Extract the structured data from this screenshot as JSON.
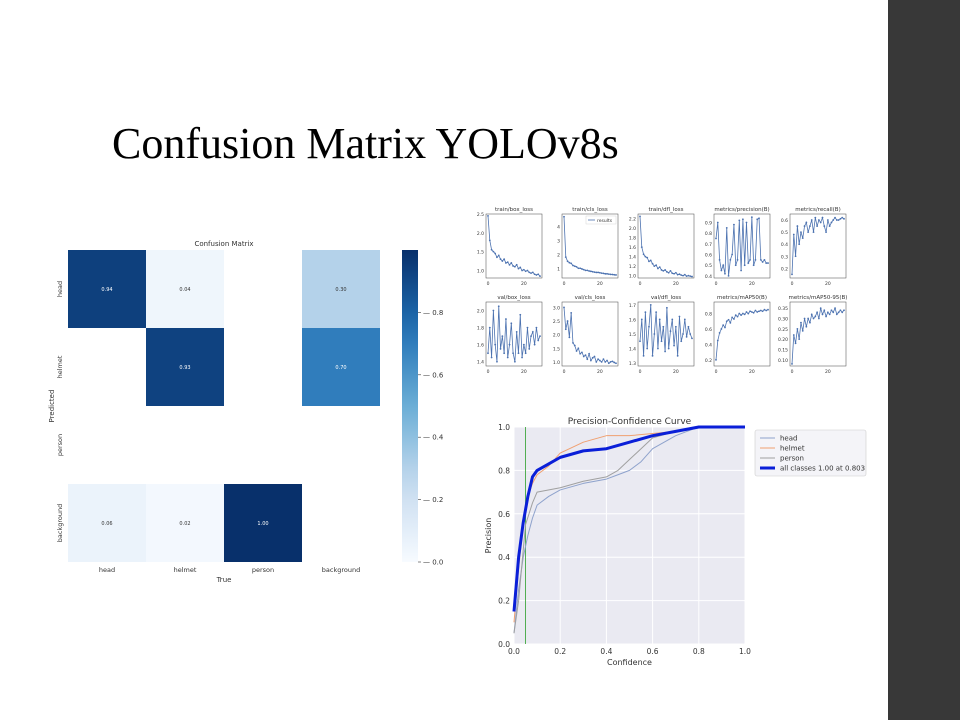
{
  "slide": {
    "title": "Confusion Matrix YOLOv8s",
    "sidebar_color": "#383838"
  },
  "chart_data": [
    {
      "type": "heatmap",
      "title": "Confusion Matrix",
      "xlabel": "True",
      "ylabel": "Predicted",
      "x_categories": [
        "head",
        "helmet",
        "person",
        "background"
      ],
      "y_categories": [
        "head",
        "helmet",
        "person",
        "background"
      ],
      "values": [
        [
          0.94,
          0.04,
          null,
          0.3
        ],
        [
          null,
          0.93,
          null,
          0.7
        ],
        [
          null,
          null,
          null,
          null
        ],
        [
          0.06,
          0.02,
          1.0,
          null
        ]
      ],
      "value_labels": [
        [
          "0.94",
          "0.04",
          "",
          "0.30"
        ],
        [
          "",
          "0.93",
          "",
          "0.70"
        ],
        [
          "",
          "",
          "",
          ""
        ],
        [
          "0.06",
          "0.02",
          "1.00",
          ""
        ]
      ],
      "colormap": "Blues",
      "colorbar_ticks": [
        "0.0",
        "0.2",
        "0.4",
        "0.6",
        "0.8"
      ],
      "colorbar_range": [
        0,
        1
      ]
    },
    {
      "type": "line",
      "layout": "2x5 small multiples",
      "legend": "results",
      "series_color": "#4c72b0",
      "x_ticks": [
        "0",
        "20"
      ],
      "panels": [
        {
          "title": "train/box_loss",
          "y_ticks": [
            "1.0",
            "1.5",
            "2.0",
            "2.5"
          ],
          "ylim": [
            0.8,
            2.5
          ],
          "values": [
            2.45,
            1.8,
            1.55,
            1.5,
            1.45,
            1.35,
            1.4,
            1.3,
            1.25,
            1.3,
            1.2,
            1.22,
            1.15,
            1.2,
            1.12,
            1.1,
            1.15,
            1.05,
            1.08,
            1.0,
            1.02,
            0.98,
            1.0,
            0.95,
            0.93,
            0.95,
            0.9,
            0.88,
            0.9,
            0.85
          ]
        },
        {
          "title": "train/cls_loss",
          "y_ticks": [
            "1",
            "2",
            "3",
            "4"
          ],
          "ylim": [
            0.3,
            4.9
          ],
          "values": [
            4.7,
            1.8,
            1.5,
            1.4,
            1.35,
            1.2,
            1.15,
            1.1,
            1.0,
            1.0,
            0.95,
            0.9,
            0.85,
            0.85,
            0.8,
            0.78,
            0.75,
            0.72,
            0.7,
            0.7,
            0.68,
            0.65,
            0.63,
            0.6,
            0.6,
            0.58,
            0.56,
            0.55,
            0.53,
            0.52
          ]
        },
        {
          "title": "train/dfl_loss",
          "y_ticks": [
            "1.0",
            "1.2",
            "1.4",
            "1.6",
            "1.8",
            "2.0",
            "2.2"
          ],
          "ylim": [
            0.95,
            2.3
          ],
          "values": [
            2.25,
            1.6,
            1.45,
            1.4,
            1.38,
            1.3,
            1.32,
            1.25,
            1.2,
            1.22,
            1.15,
            1.18,
            1.12,
            1.1,
            1.12,
            1.08,
            1.06,
            1.1,
            1.05,
            1.04,
            1.06,
            1.02,
            1.03,
            1.01,
            1.0,
            1.02,
            0.99,
            1.0,
            0.99,
            0.98
          ]
        },
        {
          "title": "metrics/precision(B)",
          "y_ticks": [
            "0.4",
            "0.5",
            "0.6",
            "0.7",
            "0.8",
            "0.9"
          ],
          "ylim": [
            0.38,
            0.98
          ],
          "values": [
            0.75,
            0.9,
            0.55,
            0.45,
            0.5,
            0.42,
            0.85,
            0.4,
            0.55,
            0.6,
            0.88,
            0.5,
            0.55,
            0.92,
            0.45,
            0.93,
            0.5,
            0.9,
            0.52,
            0.55,
            0.95,
            0.5,
            0.55,
            0.93,
            0.94,
            0.55,
            0.53,
            0.55,
            0.52,
            0.52
          ]
        },
        {
          "title": "metrics/recall(B)",
          "y_ticks": [
            "0.2",
            "0.3",
            "0.4",
            "0.5",
            "0.6"
          ],
          "ylim": [
            0.12,
            0.65
          ],
          "values": [
            0.15,
            0.48,
            0.3,
            0.55,
            0.4,
            0.5,
            0.45,
            0.55,
            0.58,
            0.5,
            0.55,
            0.6,
            0.5,
            0.62,
            0.55,
            0.6,
            0.58,
            0.62,
            0.55,
            0.5,
            0.6,
            0.55,
            0.58,
            0.6,
            0.62,
            0.6,
            0.6,
            0.61,
            0.62,
            0.61
          ]
        },
        {
          "title": "val/box_loss",
          "y_ticks": [
            "1.4",
            "1.6",
            "1.8",
            "2.0"
          ],
          "ylim": [
            1.35,
            2.1
          ],
          "values": [
            1.5,
            1.8,
            1.45,
            2.0,
            1.6,
            1.4,
            2.05,
            1.55,
            1.7,
            1.5,
            1.9,
            1.45,
            1.6,
            1.85,
            1.5,
            1.4,
            1.75,
            1.5,
            1.95,
            1.45,
            1.6,
            1.5,
            1.8,
            1.55,
            1.7,
            1.75,
            1.6,
            1.8,
            1.65,
            1.7
          ]
        },
        {
          "title": "val/cls_loss",
          "y_ticks": [
            "1.0",
            "1.5",
            "2.0",
            "2.5",
            "3.0"
          ],
          "ylim": [
            0.85,
            3.2
          ],
          "values": [
            3.0,
            2.2,
            2.5,
            1.9,
            2.8,
            1.7,
            1.6,
            1.4,
            1.5,
            1.3,
            1.35,
            1.2,
            1.25,
            1.1,
            1.3,
            1.05,
            1.15,
            1.2,
            1.0,
            1.1,
            1.05,
            1.0,
            1.1,
            1.0,
            1.05,
            0.95,
            1.0,
            1.02,
            0.98,
            0.95
          ]
        },
        {
          "title": "val/dfl_loss",
          "y_ticks": [
            "1.3",
            "1.4",
            "1.5",
            "1.6",
            "1.7"
          ],
          "ylim": [
            1.28,
            1.72
          ],
          "values": [
            1.45,
            1.6,
            1.35,
            1.65,
            1.4,
            1.55,
            1.7,
            1.35,
            1.5,
            1.65,
            1.4,
            1.6,
            1.45,
            1.55,
            1.38,
            1.68,
            1.4,
            1.52,
            1.6,
            1.42,
            1.55,
            1.35,
            1.62,
            1.45,
            1.5,
            1.6,
            1.48,
            1.55,
            1.5,
            1.47
          ]
        },
        {
          "title": "metrics/mAP50(B)",
          "y_ticks": [
            "0.2",
            "0.4",
            "0.6",
            "0.8"
          ],
          "ylim": [
            0.12,
            0.95
          ],
          "values": [
            0.2,
            0.45,
            0.55,
            0.6,
            0.65,
            0.62,
            0.7,
            0.72,
            0.68,
            0.75,
            0.73,
            0.78,
            0.76,
            0.8,
            0.78,
            0.8,
            0.79,
            0.82,
            0.8,
            0.83,
            0.82,
            0.81,
            0.84,
            0.82,
            0.83,
            0.84,
            0.83,
            0.85,
            0.84,
            0.85
          ]
        },
        {
          "title": "metrics/mAP50-95(B)",
          "y_ticks": [
            "0.10",
            "0.15",
            "0.20",
            "0.25",
            "0.30",
            "0.35"
          ],
          "ylim": [
            0.07,
            0.38
          ],
          "values": [
            0.08,
            0.22,
            0.18,
            0.25,
            0.2,
            0.28,
            0.24,
            0.3,
            0.26,
            0.3,
            0.28,
            0.32,
            0.3,
            0.31,
            0.33,
            0.3,
            0.35,
            0.32,
            0.34,
            0.31,
            0.33,
            0.32,
            0.34,
            0.33,
            0.35,
            0.32,
            0.33,
            0.34,
            0.33,
            0.34
          ]
        }
      ]
    },
    {
      "type": "line",
      "title": "Precision-Confidence Curve",
      "xlabel": "Confidence",
      "ylabel": "Precision",
      "xlim": [
        0,
        1
      ],
      "ylim": [
        0,
        1
      ],
      "x_ticks": [
        "0.0",
        "0.2",
        "0.4",
        "0.6",
        "0.8",
        "1.0"
      ],
      "y_ticks": [
        "0.0",
        "0.2",
        "0.4",
        "0.6",
        "0.8",
        "1.0"
      ],
      "grid": true,
      "legend_position": "top-right",
      "vline": {
        "x": 0.05,
        "color": "#2ca02c"
      },
      "series": [
        {
          "name": "head",
          "color": "#8ea2cc",
          "width": 1,
          "x": [
            0,
            0.02,
            0.04,
            0.06,
            0.08,
            0.1,
            0.15,
            0.2,
            0.3,
            0.4,
            0.45,
            0.5,
            0.55,
            0.6,
            0.7,
            0.75,
            0.8,
            1.0
          ],
          "y": [
            0.05,
            0.25,
            0.4,
            0.5,
            0.58,
            0.64,
            0.68,
            0.71,
            0.74,
            0.76,
            0.78,
            0.8,
            0.84,
            0.9,
            0.96,
            0.98,
            1.0,
            1.0
          ]
        },
        {
          "name": "helmet",
          "color": "#f0a070",
          "width": 1,
          "x": [
            0,
            0.02,
            0.04,
            0.06,
            0.08,
            0.1,
            0.15,
            0.2,
            0.3,
            0.4,
            0.5,
            0.6,
            0.7,
            0.75,
            0.8,
            1.0
          ],
          "y": [
            0.1,
            0.35,
            0.55,
            0.68,
            0.74,
            0.78,
            0.82,
            0.88,
            0.93,
            0.96,
            0.96,
            0.97,
            0.98,
            0.99,
            1.0,
            1.0
          ]
        },
        {
          "name": "person",
          "color": "#a0a0a0",
          "width": 1,
          "x": [
            0,
            0.02,
            0.05,
            0.08,
            0.1,
            0.2,
            0.3,
            0.4,
            0.45,
            0.5,
            0.55,
            0.6,
            0.7,
            0.8,
            1.0
          ],
          "y": [
            0.05,
            0.2,
            0.55,
            0.65,
            0.7,
            0.72,
            0.75,
            0.77,
            0.8,
            0.85,
            0.9,
            0.95,
            0.98,
            1.0,
            1.0
          ]
        },
        {
          "name": "all classes 1.00 at 0.803",
          "color": "#0a1fd8",
          "width": 3,
          "x": [
            0,
            0.02,
            0.04,
            0.06,
            0.08,
            0.1,
            0.15,
            0.2,
            0.3,
            0.4,
            0.5,
            0.6,
            0.7,
            0.8,
            1.0
          ],
          "y": [
            0.15,
            0.4,
            0.56,
            0.68,
            0.77,
            0.8,
            0.83,
            0.86,
            0.89,
            0.9,
            0.93,
            0.96,
            0.98,
            1.0,
            1.0
          ]
        }
      ]
    }
  ]
}
